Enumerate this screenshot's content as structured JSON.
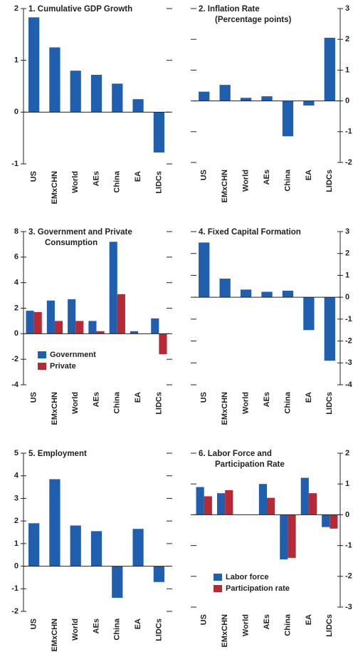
{
  "chart_data": [
    {
      "type": "bar",
      "title": [
        "1. Cumulative GDP Growth"
      ],
      "yaxis_side": "left",
      "categories": [
        "US",
        "EMxCHN",
        "World",
        "AEs",
        "China",
        "EA",
        "LIDCs"
      ],
      "series": [
        {
          "color": "#1f5fae",
          "values": [
            1.83,
            1.25,
            0.8,
            0.72,
            0.55,
            0.25,
            -0.78
          ]
        }
      ],
      "ylim": [
        -1,
        2
      ],
      "yticks": [
        -1,
        0,
        1,
        2
      ]
    },
    {
      "type": "bar",
      "title": [
        "2. Inflation Rate",
        "(Percentage points)"
      ],
      "yaxis_side": "right",
      "categories": [
        "US",
        "EMxCHN",
        "World",
        "AEs",
        "China",
        "EA",
        "LIDCs"
      ],
      "series": [
        {
          "color": "#1f5fae",
          "values": [
            0.3,
            0.52,
            0.1,
            0.15,
            -1.15,
            -0.15,
            2.05
          ]
        }
      ],
      "ylim": [
        -2,
        3
      ],
      "yticks": [
        -2,
        -1,
        0,
        1,
        2,
        3
      ]
    },
    {
      "type": "bar",
      "title": [
        "3. Government and Private",
        "Consumption"
      ],
      "yaxis_side": "left",
      "categories": [
        "US",
        "EMxCHN",
        "World",
        "AEs",
        "China",
        "EA",
        "LIDCs"
      ],
      "series": [
        {
          "name": "Government",
          "color": "#1f5fae",
          "values": [
            1.8,
            2.6,
            2.7,
            1.0,
            7.2,
            0.2,
            1.2
          ]
        },
        {
          "name": "Private",
          "color": "#b52a35",
          "values": [
            1.7,
            1.0,
            1.0,
            0.2,
            3.1,
            0,
            -1.6
          ]
        }
      ],
      "ylim": [
        -4,
        8
      ],
      "yticks": [
        -4,
        -2,
        0,
        2,
        4,
        6,
        8
      ],
      "legend": "lower left"
    },
    {
      "type": "bar",
      "title": [
        "4. Fixed Capital Formation"
      ],
      "yaxis_side": "right",
      "categories": [
        "US",
        "EMxCHN",
        "World",
        "AEs",
        "China",
        "EA",
        "LIDCs"
      ],
      "series": [
        {
          "color": "#1f5fae",
          "values": [
            2.5,
            0.85,
            0.35,
            0.25,
            0.3,
            -1.5,
            -2.9
          ]
        }
      ],
      "ylim": [
        -4,
        3
      ],
      "yticks": [
        -4,
        -3,
        -2,
        -1,
        0,
        1,
        2,
        3
      ]
    },
    {
      "type": "bar",
      "title": [
        "5. Employment"
      ],
      "yaxis_side": "left",
      "categories": [
        "US",
        "EMxCHN",
        "World",
        "AEs",
        "China",
        "EA",
        "LIDCs"
      ],
      "series": [
        {
          "color": "#1f5fae",
          "values": [
            1.9,
            3.85,
            1.8,
            1.55,
            -1.4,
            1.65,
            -0.7
          ]
        }
      ],
      "ylim": [
        -2,
        5
      ],
      "yticks": [
        -2,
        -1,
        0,
        1,
        2,
        3,
        4,
        5
      ]
    },
    {
      "type": "bar",
      "title": [
        "6. Labor Force and",
        "Participation Rate"
      ],
      "yaxis_side": "right",
      "categories": [
        "US",
        "EMxCHN",
        "World",
        "AEs",
        "China",
        "EA",
        "LIDCs"
      ],
      "series": [
        {
          "name": "Labor force",
          "color": "#1f5fae",
          "values": [
            0.9,
            0.7,
            0,
            1.0,
            -1.45,
            1.2,
            -0.4
          ]
        },
        {
          "name": "Participation rate",
          "color": "#b52a35",
          "values": [
            0.6,
            0.8,
            0,
            0.55,
            -1.4,
            0.7,
            -0.45
          ]
        }
      ],
      "ylim": [
        -3,
        2
      ],
      "yticks": [
        -3,
        -2,
        -1,
        0,
        1,
        2
      ],
      "legend": "lower center"
    }
  ]
}
